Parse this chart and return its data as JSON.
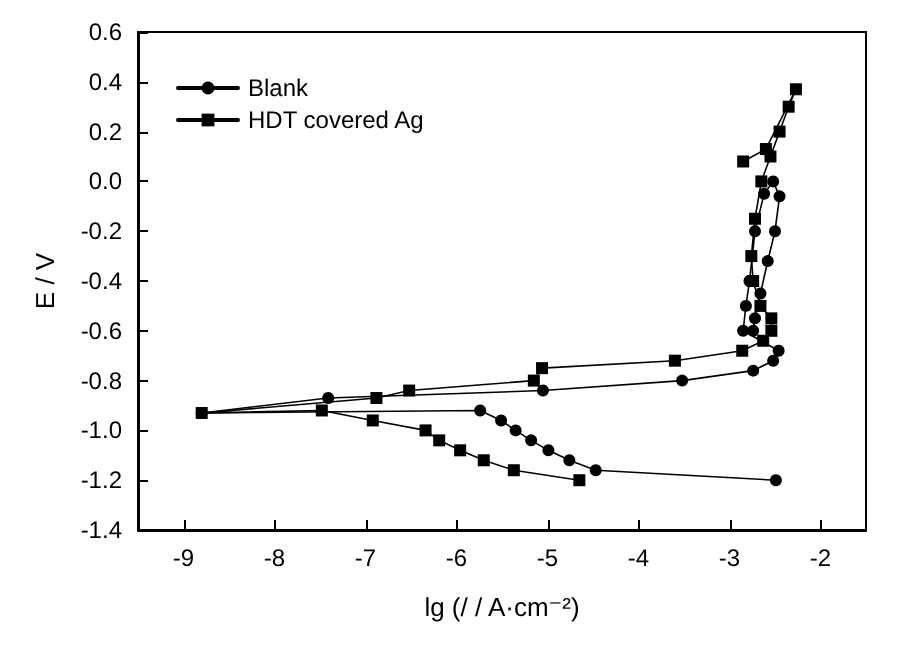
{
  "chart_data": {
    "type": "line",
    "xlabel": "lg (/ / A·cm⁻²)",
    "ylabel": "E / V",
    "xlim": [
      -9.5,
      -1.5
    ],
    "xticks": [
      -9,
      -8,
      -7,
      -6,
      -5,
      -4,
      -3,
      -2
    ],
    "ylim": [
      -1.4,
      0.6
    ],
    "yticks": [
      {
        "value": -1.4,
        "label": "-1.4"
      },
      {
        "value": -1.2,
        "label": "-1.2"
      },
      {
        "value": -1.0,
        "label": "-1.0"
      },
      {
        "value": -0.8,
        "label": "-0.8"
      },
      {
        "value": -0.6,
        "label": "-0.6"
      },
      {
        "value": -0.4,
        "label": "-0.4"
      },
      {
        "value": -0.2,
        "label": "-0.2"
      },
      {
        "value": 0,
        "label": "0.0"
      },
      {
        "value": 0.2,
        "label": "0.2"
      },
      {
        "value": 0.4,
        "label": "0.4"
      },
      {
        "value": 0.6,
        "label": "0.6"
      }
    ],
    "grid": false,
    "legend": "top left",
    "line_style": "solid",
    "series": [
      {
        "name": "Blank",
        "marker": "circle",
        "color": "#000000",
        "x": [
          -2.49,
          -4.47,
          -4.76,
          -4.99,
          -5.18,
          -5.35,
          -5.51,
          -5.74,
          -8.8,
          -7.41,
          -5.05,
          -3.52,
          -2.74,
          -2.52,
          -2.46,
          -2.85,
          -2.82,
          -2.78,
          -2.72,
          -2.62,
          -2.52,
          -2.45,
          -2.5,
          -2.58,
          -2.66,
          -2.72,
          -2.74
        ],
        "values": [
          -1.2,
          -1.16,
          -1.12,
          -1.08,
          -1.04,
          -1.0,
          -0.96,
          -0.92,
          -0.93,
          -0.87,
          -0.84,
          -0.8,
          -0.76,
          -0.72,
          -0.68,
          -0.6,
          -0.5,
          -0.4,
          -0.2,
          -0.05,
          0.0,
          -0.06,
          -0.2,
          -0.32,
          -0.45,
          -0.55,
          -0.6
        ]
      },
      {
        "name": "HDT covered Ag",
        "marker": "square",
        "color": "#000000",
        "x": [
          -4.65,
          -5.37,
          -5.7,
          -5.96,
          -6.19,
          -6.34,
          -6.92,
          -7.48,
          -8.8,
          -6.88,
          -6.52,
          -5.15,
          -5.06,
          -3.6,
          -2.86,
          -2.63,
          -2.54,
          -2.54,
          -2.66,
          -2.74,
          -2.76,
          -2.72,
          -2.65,
          -2.55,
          -2.45,
          -2.35,
          -2.27,
          -2.6,
          -2.85
        ],
        "values": [
          -1.2,
          -1.16,
          -1.12,
          -1.08,
          -1.04,
          -1.0,
          -0.96,
          -0.92,
          -0.93,
          -0.87,
          -0.84,
          -0.8,
          -0.75,
          -0.72,
          -0.68,
          -0.64,
          -0.6,
          -0.55,
          -0.5,
          -0.4,
          -0.3,
          -0.15,
          0.0,
          0.1,
          0.2,
          0.3,
          0.37,
          0.13,
          0.08
        ]
      }
    ]
  }
}
